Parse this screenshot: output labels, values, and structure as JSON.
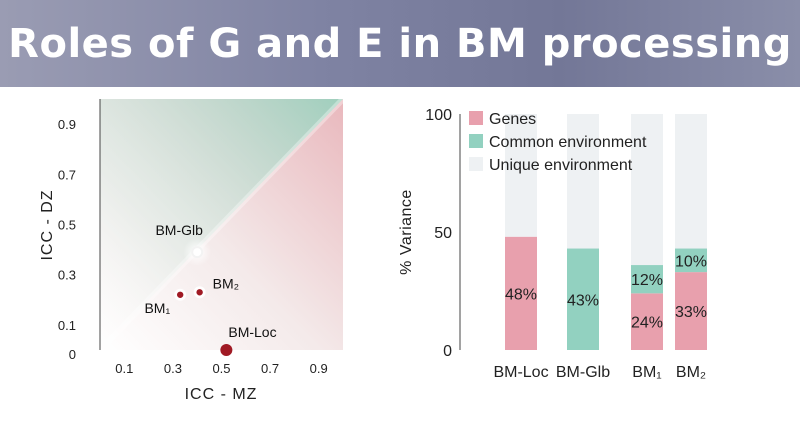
{
  "title": "Roles of G and E in BM processing",
  "colors": {
    "genes": "#e8a0ad",
    "common": "#92d1c0",
    "unique": "#eef1f3",
    "point": "#a01a24"
  },
  "chart_data": [
    {
      "type": "scatter",
      "xlabel": "ICC - MZ",
      "ylabel": "ICC - DZ",
      "xlim": [
        0,
        1
      ],
      "ylim": [
        0,
        1
      ],
      "xticks": [
        "0.1",
        "0.3",
        "0.5",
        "0.7",
        "0.9"
      ],
      "yticks": [
        "0",
        "0.1",
        "0.3",
        "0.5",
        "0.7",
        "0.9"
      ],
      "points": [
        {
          "name": "BM-Glb",
          "x": 0.4,
          "y": 0.39,
          "style": "white"
        },
        {
          "name": "BM₁",
          "x": 0.33,
          "y": 0.22,
          "style": "red"
        },
        {
          "name": "BM₂",
          "x": 0.41,
          "y": 0.23,
          "style": "red"
        },
        {
          "name": "BM-Loc",
          "x": 0.52,
          "y": 0.0,
          "style": "red-large"
        }
      ]
    },
    {
      "type": "bar",
      "stacked": true,
      "ylabel": "% Variance",
      "ylim": [
        0,
        100
      ],
      "yticks": [
        "0",
        "50",
        "100"
      ],
      "categories": [
        "BM-Loc",
        "BM-Glb",
        "BM₁",
        "BM₂"
      ],
      "series": [
        {
          "name": "Genes",
          "values": [
            48,
            0,
            24,
            33
          ]
        },
        {
          "name": "Common environment",
          "values": [
            0,
            43,
            12,
            10
          ]
        },
        {
          "name": "Unique environment",
          "values": [
            52,
            57,
            64,
            57
          ]
        }
      ],
      "value_labels": [
        {
          "text": "48%",
          "category": 0,
          "series": 0
        },
        {
          "text": "43%",
          "category": 1,
          "series": 1
        },
        {
          "text": "12%",
          "category": 2,
          "series": 1
        },
        {
          "text": "24%",
          "category": 2,
          "series": 0
        },
        {
          "text": "10%",
          "category": 3,
          "series": 1
        },
        {
          "text": "33%",
          "category": 3,
          "series": 0
        }
      ]
    }
  ]
}
